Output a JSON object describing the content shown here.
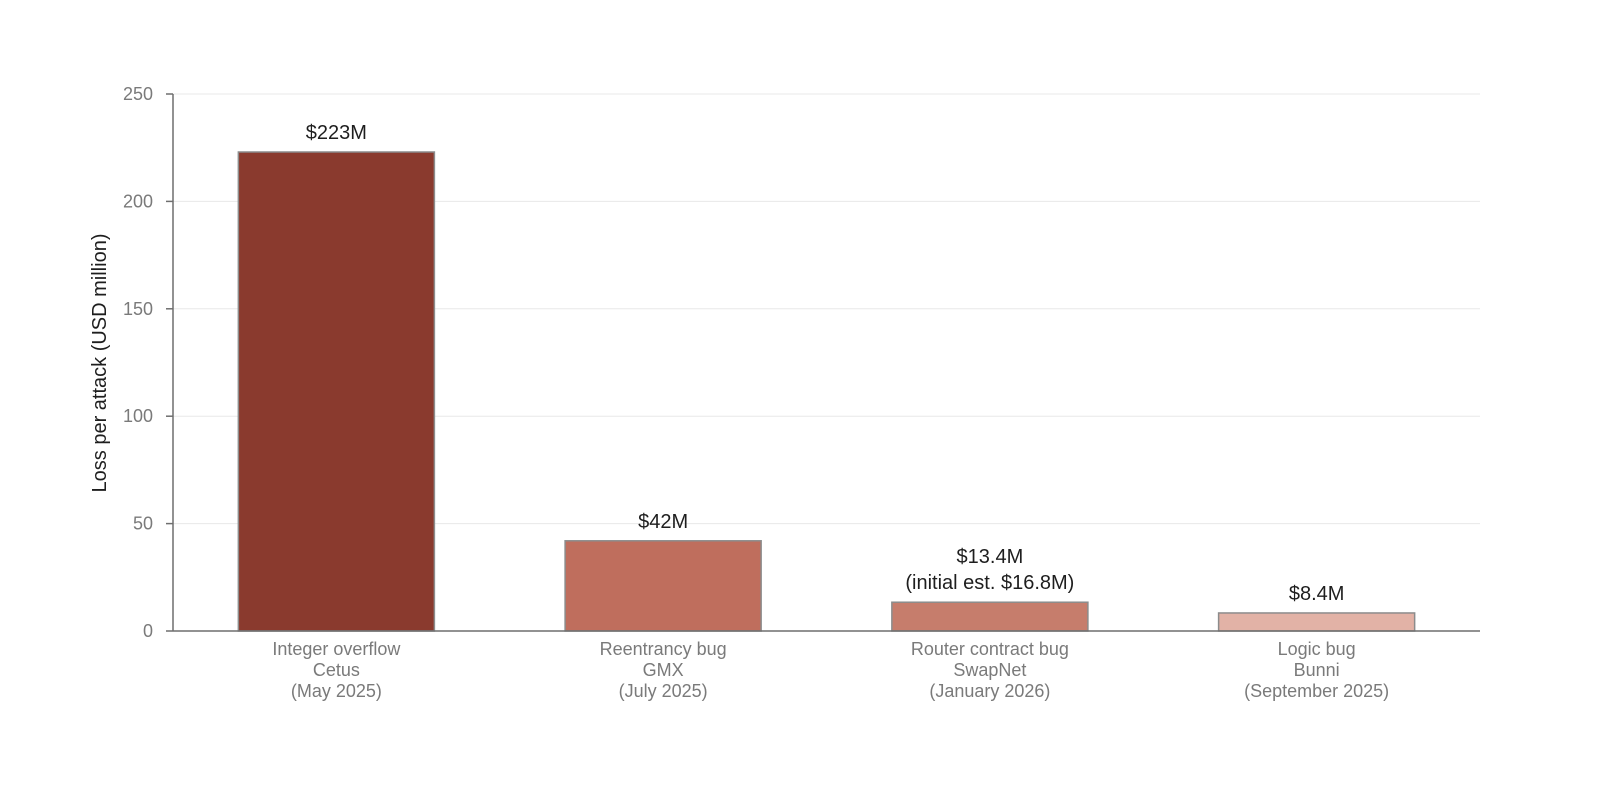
{
  "chart_data": {
    "type": "bar",
    "title": "",
    "xlabel": "",
    "ylabel": "Loss per attack (USD million)",
    "ylim": [
      0,
      250
    ],
    "yticks": [
      0,
      50,
      100,
      150,
      200,
      250
    ],
    "grid": true,
    "legend": "none",
    "categories": [
      [
        "Integer overflow",
        "Cetus",
        "(May 2025)"
      ],
      [
        "Reentrancy bug",
        "GMX",
        "(July 2025)"
      ],
      [
        "Router contract bug",
        "SwapNet",
        "(January 2026)"
      ],
      [
        "Logic bug",
        "Bunni",
        "(September 2025)"
      ]
    ],
    "values": [
      223,
      42,
      13.4,
      8.4
    ],
    "data_labels": [
      [
        "$223M"
      ],
      [
        "$42M"
      ],
      [
        "$13.4M",
        "(initial est. $16.8M)"
      ],
      [
        "$8.4M"
      ]
    ],
    "colors": [
      "#8a3a2e",
      "#bf6e5d",
      "#c67d6c",
      "#e2b2a6"
    ],
    "bar_edge_color": "#8c8c8c",
    "axis_color": "#6e6e6e",
    "grid_color": "#e8e8e8"
  }
}
